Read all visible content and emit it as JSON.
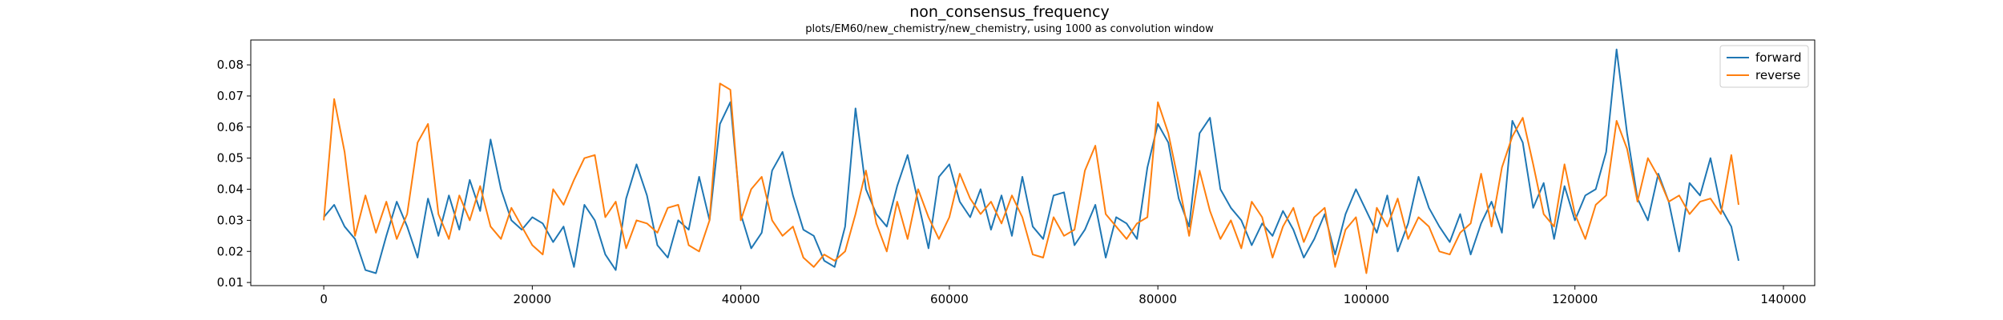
{
  "chart_data": {
    "type": "line",
    "title": "non_consensus_frequency",
    "subtitle": "plots/EM60/new_chemistry/new_chemistry, using 1000 as convolution window",
    "xlabel": "",
    "ylabel": "",
    "xlim": [
      -7000,
      143000
    ],
    "ylim": [
      0.009,
      0.088
    ],
    "x_ticks": [
      0,
      20000,
      40000,
      60000,
      80000,
      100000,
      120000,
      140000
    ],
    "x_tick_labels": [
      "0",
      "20000",
      "40000",
      "60000",
      "80000",
      "100000",
      "120000",
      "140000"
    ],
    "y_ticks": [
      0.01,
      0.02,
      0.03,
      0.04,
      0.05,
      0.06,
      0.07,
      0.08
    ],
    "y_tick_labels": [
      "0.01",
      "0.02",
      "0.03",
      "0.04",
      "0.05",
      "0.06",
      "0.07",
      "0.08"
    ],
    "grid": false,
    "legend_position": "top-right",
    "series": [
      {
        "name": "forward",
        "color": "#1f77b4",
        "x": [
          0,
          1000,
          2000,
          3000,
          4000,
          5000,
          6000,
          7000,
          8000,
          9000,
          10000,
          11000,
          12000,
          13000,
          14000,
          15000,
          16000,
          17000,
          18000,
          19000,
          20000,
          21000,
          22000,
          23000,
          24000,
          25000,
          26000,
          27000,
          28000,
          29000,
          30000,
          31000,
          32000,
          33000,
          34000,
          35000,
          36000,
          37000,
          38000,
          39000,
          40000,
          41000,
          42000,
          43000,
          44000,
          45000,
          46000,
          47000,
          48000,
          49000,
          50000,
          51000,
          52000,
          53000,
          54000,
          55000,
          56000,
          57000,
          58000,
          59000,
          60000,
          61000,
          62000,
          63000,
          64000,
          65000,
          66000,
          67000,
          68000,
          69000,
          70000,
          71000,
          72000,
          73000,
          74000,
          75000,
          76000,
          77000,
          78000,
          79000,
          80000,
          81000,
          82000,
          83000,
          84000,
          85000,
          86000,
          87000,
          88000,
          89000,
          90000,
          91000,
          92000,
          93000,
          94000,
          95000,
          96000,
          97000,
          98000,
          99000,
          100000,
          101000,
          102000,
          103000,
          104000,
          105000,
          106000,
          107000,
          108000,
          109000,
          110000,
          111000,
          112000,
          113000,
          114000,
          115000,
          116000,
          117000,
          118000,
          119000,
          120000,
          121000,
          122000,
          123000,
          124000,
          125000,
          126000,
          127000,
          128000,
          129000,
          130000,
          131000,
          132000,
          133000,
          134000,
          135000,
          135700
        ],
        "y": [
          0.031,
          0.035,
          0.028,
          0.024,
          0.014,
          0.013,
          0.025,
          0.036,
          0.028,
          0.018,
          0.037,
          0.025,
          0.038,
          0.027,
          0.043,
          0.033,
          0.056,
          0.04,
          0.03,
          0.027,
          0.031,
          0.029,
          0.023,
          0.028,
          0.015,
          0.035,
          0.03,
          0.019,
          0.014,
          0.037,
          0.048,
          0.038,
          0.022,
          0.018,
          0.03,
          0.027,
          0.044,
          0.03,
          0.061,
          0.068,
          0.032,
          0.021,
          0.026,
          0.046,
          0.052,
          0.038,
          0.027,
          0.025,
          0.017,
          0.015,
          0.028,
          0.066,
          0.04,
          0.032,
          0.028,
          0.041,
          0.051,
          0.036,
          0.021,
          0.044,
          0.048,
          0.036,
          0.031,
          0.04,
          0.027,
          0.038,
          0.025,
          0.044,
          0.028,
          0.024,
          0.038,
          0.039,
          0.022,
          0.027,
          0.035,
          0.018,
          0.031,
          0.029,
          0.024,
          0.047,
          0.061,
          0.055,
          0.037,
          0.028,
          0.058,
          0.063,
          0.04,
          0.034,
          0.03,
          0.022,
          0.029,
          0.025,
          0.033,
          0.027,
          0.018,
          0.024,
          0.032,
          0.019,
          0.032,
          0.04,
          0.033,
          0.026,
          0.038,
          0.02,
          0.029,
          0.044,
          0.034,
          0.028,
          0.023,
          0.032,
          0.019,
          0.029,
          0.036,
          0.026,
          0.062,
          0.055,
          0.034,
          0.042,
          0.024,
          0.041,
          0.03,
          0.038,
          0.04,
          0.052,
          0.085,
          0.058,
          0.037,
          0.03,
          0.045,
          0.036,
          0.02,
          0.042,
          0.038,
          0.05,
          0.034,
          0.028,
          0.017
        ]
      },
      {
        "name": "reverse",
        "color": "#ff7f0e",
        "x": [
          0,
          1000,
          2000,
          3000,
          4000,
          5000,
          6000,
          7000,
          8000,
          9000,
          10000,
          11000,
          12000,
          13000,
          14000,
          15000,
          16000,
          17000,
          18000,
          19000,
          20000,
          21000,
          22000,
          23000,
          24000,
          25000,
          26000,
          27000,
          28000,
          29000,
          30000,
          31000,
          32000,
          33000,
          34000,
          35000,
          36000,
          37000,
          38000,
          39000,
          40000,
          41000,
          42000,
          43000,
          44000,
          45000,
          46000,
          47000,
          48000,
          49000,
          50000,
          51000,
          52000,
          53000,
          54000,
          55000,
          56000,
          57000,
          58000,
          59000,
          60000,
          61000,
          62000,
          63000,
          64000,
          65000,
          66000,
          67000,
          68000,
          69000,
          70000,
          71000,
          72000,
          73000,
          74000,
          75000,
          76000,
          77000,
          78000,
          79000,
          80000,
          81000,
          82000,
          83000,
          84000,
          85000,
          86000,
          87000,
          88000,
          89000,
          90000,
          91000,
          92000,
          93000,
          94000,
          95000,
          96000,
          97000,
          98000,
          99000,
          100000,
          101000,
          102000,
          103000,
          104000,
          105000,
          106000,
          107000,
          108000,
          109000,
          110000,
          111000,
          112000,
          113000,
          114000,
          115000,
          116000,
          117000,
          118000,
          119000,
          120000,
          121000,
          122000,
          123000,
          124000,
          125000,
          126000,
          127000,
          128000,
          129000,
          130000,
          131000,
          132000,
          133000,
          134000,
          135000,
          135700
        ],
        "y": [
          0.03,
          0.069,
          0.052,
          0.025,
          0.038,
          0.026,
          0.036,
          0.024,
          0.032,
          0.055,
          0.061,
          0.032,
          0.024,
          0.038,
          0.03,
          0.041,
          0.028,
          0.024,
          0.034,
          0.028,
          0.022,
          0.019,
          0.04,
          0.035,
          0.043,
          0.05,
          0.051,
          0.031,
          0.036,
          0.021,
          0.03,
          0.029,
          0.026,
          0.034,
          0.035,
          0.022,
          0.02,
          0.03,
          0.074,
          0.072,
          0.03,
          0.04,
          0.044,
          0.03,
          0.025,
          0.028,
          0.018,
          0.015,
          0.019,
          0.017,
          0.02,
          0.032,
          0.046,
          0.029,
          0.02,
          0.036,
          0.024,
          0.04,
          0.031,
          0.024,
          0.031,
          0.045,
          0.037,
          0.032,
          0.036,
          0.029,
          0.038,
          0.031,
          0.019,
          0.018,
          0.031,
          0.025,
          0.027,
          0.046,
          0.054,
          0.032,
          0.028,
          0.024,
          0.029,
          0.031,
          0.068,
          0.058,
          0.042,
          0.025,
          0.046,
          0.033,
          0.024,
          0.03,
          0.021,
          0.036,
          0.031,
          0.018,
          0.028,
          0.034,
          0.023,
          0.031,
          0.034,
          0.015,
          0.027,
          0.031,
          0.013,
          0.034,
          0.028,
          0.037,
          0.024,
          0.031,
          0.028,
          0.02,
          0.019,
          0.026,
          0.029,
          0.045,
          0.028,
          0.047,
          0.057,
          0.063,
          0.048,
          0.032,
          0.028,
          0.048,
          0.032,
          0.024,
          0.035,
          0.038,
          0.062,
          0.053,
          0.036,
          0.05,
          0.044,
          0.036,
          0.038,
          0.032,
          0.036,
          0.037,
          0.032,
          0.051,
          0.035
        ]
      }
    ]
  }
}
